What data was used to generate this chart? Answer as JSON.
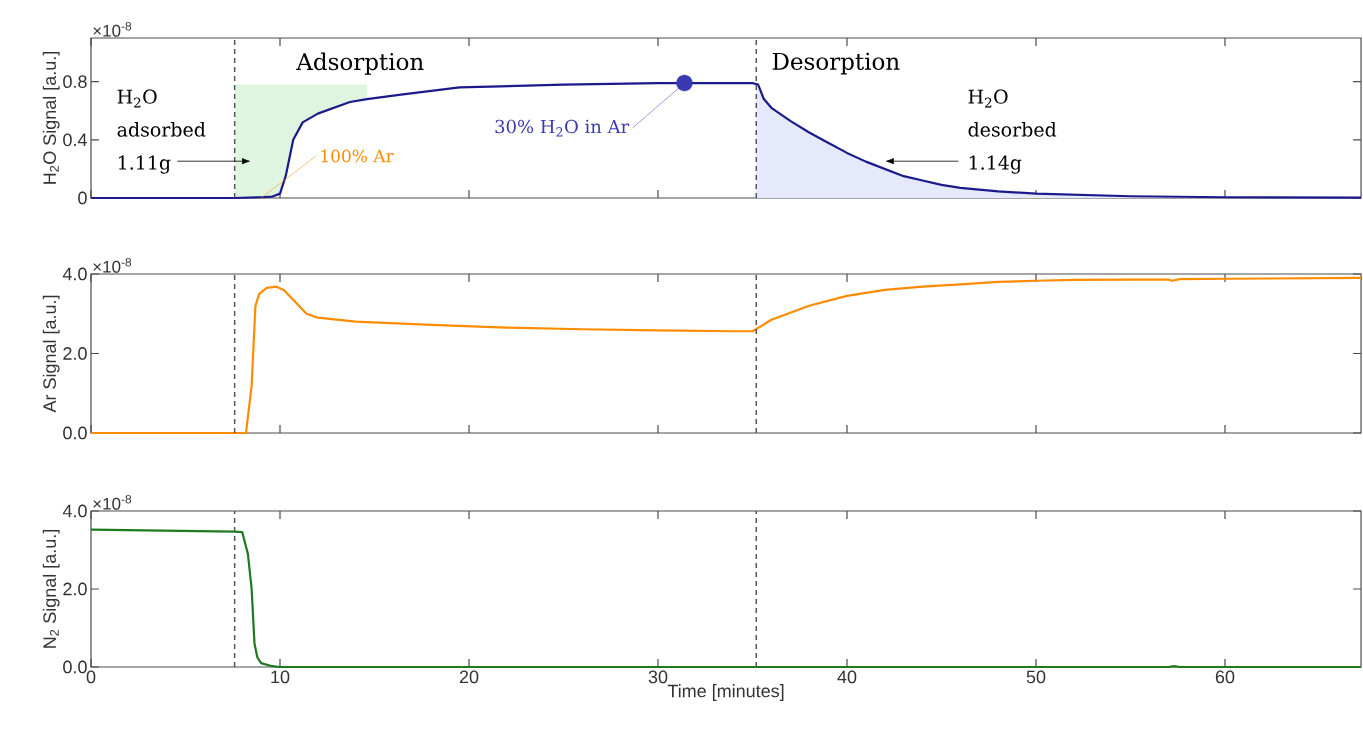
{
  "chart_data": [
    {
      "type": "line",
      "ylabel": "H$_{2}$O Signal [a.u.]",
      "xlim": [
        0,
        67.2
      ],
      "ylim": [
        0,
        1.1
      ],
      "xticks": [
        0,
        10,
        20,
        30,
        40,
        50,
        60
      ],
      "yticks": [
        0,
        0.4,
        0.8
      ],
      "tick_labels": "y",
      "ref_lines": [
        {
          "axis": "x",
          "value": 7.6,
          "color": "#555555",
          "line_style": "dashed"
        },
        {
          "axis": "x",
          "value": 35.2,
          "color": "#555555",
          "line_style": "dashed"
        }
      ],
      "annotations": [
        "Adsorption",
        "Desorption",
        "H$_{2}$O adsorbed 1.11g",
        "H$_{2}$O desorbed 1.14g",
        {
          "text": "100% Ar",
          "x": 9.0,
          "y": 0
        },
        "×10$^{-8}$"
      ],
      "series": [
        {
          "type": "area",
          "color": "#e6e8fb",
          "x": [
            35.2,
            35.3,
            35.6,
            36,
            37,
            38,
            39,
            40,
            41,
            42,
            43,
            44,
            45,
            46,
            48,
            50,
            55,
            60,
            67.2
          ],
          "values": [
            0.79,
            0.78,
            0.68,
            0.62,
            0.53,
            0.45,
            0.38,
            0.31,
            0.25,
            0.2,
            0.15,
            0.12,
            0.09,
            0.07,
            0.045,
            0.03,
            0.012,
            0.005,
            0.003
          ]
        },
        {
          "type": "line",
          "color": "#1a1a8c",
          "x": [
            0,
            7.6,
            9.0,
            9.6,
            10.0,
            10.3,
            10.7,
            11.2,
            12.0,
            13.7,
            14.6,
            16.4,
            19.5,
            25,
            30,
            34,
            35.0,
            35.3,
            35.6,
            36,
            37,
            38,
            39,
            40,
            41,
            42,
            43,
            44,
            45,
            46,
            48,
            50,
            55,
            60,
            67.2
          ],
          "lower": [
            null,
            0,
            0.005,
            0.01,
            0.03,
            0.15,
            0.4,
            0.52,
            0.58,
            0.66,
            0.68,
            null,
            null,
            null,
            null,
            null,
            null,
            null,
            null,
            null,
            null,
            null,
            null,
            null,
            null,
            null,
            null,
            null,
            null,
            null,
            null,
            null,
            null,
            null,
            null
          ],
          "upper": [
            null,
            0.78,
            0.78,
            0.78,
            0.78,
            0.78,
            0.78,
            0.78,
            0.78,
            0.78,
            0.78,
            null,
            null,
            null,
            null,
            null,
            null,
            null,
            null,
            null,
            null,
            null,
            null,
            null,
            null,
            null,
            null,
            null,
            null,
            null,
            null,
            null,
            null,
            null,
            null
          ],
          "values": [
            0,
            0,
            0.005,
            0.01,
            0.03,
            0.15,
            0.4,
            0.52,
            0.58,
            0.66,
            0.68,
            0.71,
            0.76,
            0.78,
            0.79,
            0.79,
            0.79,
            0.78,
            0.68,
            0.62,
            0.53,
            0.45,
            0.38,
            0.31,
            0.25,
            0.2,
            0.15,
            0.12,
            0.09,
            0.07,
            0.045,
            0.03,
            0.012,
            0.005,
            0.003
          ]
        },
        {
          "type": "scatter",
          "name": "30% H$_{2}$O in Ar",
          "color": "#3a3ab0",
          "marker": "circle",
          "x": [
            31.4
          ],
          "values": [
            0.79
          ]
        }
      ]
    },
    {
      "type": "line",
      "ylabel": "Ar Signal [a.u.]",
      "xlim": [
        0,
        67.2
      ],
      "ylim": [
        0,
        4.0
      ],
      "xticks": [
        0,
        10,
        20,
        30,
        40,
        50,
        60
      ],
      "yticks": [
        {
          "value": 0,
          "label": "0.0"
        },
        {
          "value": 2,
          "label": "2.0"
        },
        {
          "value": 4,
          "label": "4.0"
        }
      ],
      "tick_labels": "y",
      "ref_lines": [
        {
          "axis": "x",
          "value": 7.6,
          "color": "#555555",
          "line_style": "dashed"
        },
        {
          "axis": "x",
          "value": 35.2,
          "color": "#555555",
          "line_style": "dashed"
        }
      ],
      "annotations": [
        "×10$^{-8}$"
      ],
      "series": [
        {
          "color": "#ff8c00",
          "x": [
            0,
            7.9,
            8.2,
            8.5,
            8.7,
            8.9,
            9.3,
            9.8,
            10.2,
            10.8,
            11.4,
            12,
            14,
            18,
            22,
            26,
            30,
            34,
            35.0,
            35.5,
            36,
            38,
            40,
            42,
            44,
            46,
            48,
            50,
            52,
            55,
            57,
            57.2,
            57.6,
            60,
            67.2
          ],
          "values": [
            0,
            0,
            0,
            1.2,
            3.2,
            3.5,
            3.65,
            3.68,
            3.6,
            3.3,
            3.0,
            2.9,
            2.8,
            2.72,
            2.65,
            2.61,
            2.58,
            2.56,
            2.56,
            2.7,
            2.85,
            3.2,
            3.45,
            3.6,
            3.68,
            3.74,
            3.8,
            3.83,
            3.85,
            3.86,
            3.86,
            3.83,
            3.87,
            3.88,
            3.9
          ]
        }
      ]
    },
    {
      "type": "line",
      "ylabel": "N$_{2}$ Signal [a.u.]",
      "xlabel": "Time [minutes]",
      "xlim": [
        0,
        67.2
      ],
      "ylim": [
        0,
        4.0
      ],
      "xticks": [
        0,
        10,
        20,
        30,
        40,
        50,
        60
      ],
      "yticks": [
        {
          "value": 0,
          "label": "0.0"
        },
        {
          "value": 2,
          "label": "2.0"
        },
        {
          "value": 4,
          "label": "4.0"
        }
      ],
      "ref_lines": [
        {
          "axis": "x",
          "value": 7.6,
          "color": "#555555",
          "line_style": "dashed"
        },
        {
          "axis": "x",
          "value": 35.2,
          "color": "#555555",
          "line_style": "dashed"
        }
      ],
      "annotations": [
        "×10$^{-8}$"
      ],
      "series": [
        {
          "color": "#1e7a1e",
          "x": [
            0,
            7.6,
            8.0,
            8.3,
            8.5,
            8.65,
            8.8,
            9.0,
            9.5,
            10,
            20,
            40,
            57,
            57.3,
            57.6,
            67.2
          ],
          "values": [
            3.52,
            3.47,
            3.46,
            2.9,
            2.0,
            0.6,
            0.25,
            0.1,
            0.03,
            0,
            0,
            0,
            0,
            0.02,
            0,
            0
          ]
        }
      ]
    }
  ]
}
